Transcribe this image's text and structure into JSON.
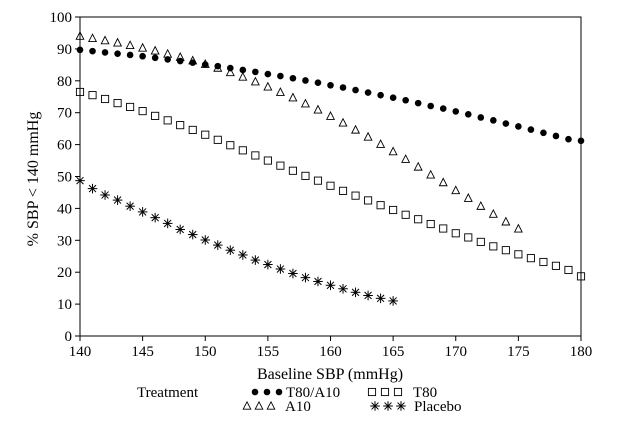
{
  "chart_data": {
    "type": "scatter",
    "title": "",
    "xlabel": "Baseline SBP (mmHg)",
    "ylabel": "% SBP < 140 mmHg",
    "xlim": [
      140,
      180
    ],
    "ylim": [
      0,
      100
    ],
    "x_ticks": [
      140,
      145,
      150,
      155,
      160,
      165,
      170,
      175,
      180
    ],
    "y_ticks": [
      0,
      10,
      20,
      30,
      40,
      50,
      60,
      70,
      80,
      90,
      100
    ],
    "grid": false,
    "legend": {
      "title": "Treatment",
      "placement": "bottom",
      "entries": [
        "T80/A10",
        "T80",
        "A10",
        "Placebo"
      ]
    },
    "series": [
      {
        "name": "T80/A10",
        "marker": "dot",
        "x": [
          140,
          141,
          142,
          143,
          144,
          145,
          146,
          147,
          148,
          149,
          150,
          151,
          152,
          153,
          154,
          155,
          156,
          157,
          158,
          159,
          160,
          161,
          162,
          163,
          164,
          165,
          166,
          167,
          168,
          169,
          170,
          171,
          172,
          173,
          174,
          175,
          176,
          177,
          178,
          179,
          180
        ],
        "y": [
          89.7,
          89.3,
          88.9,
          88.5,
          88.1,
          87.7,
          87.2,
          86.7,
          86.2,
          85.7,
          85.1,
          84.6,
          84.0,
          83.4,
          82.8,
          82.1,
          81.5,
          80.8,
          80.1,
          79.4,
          78.6,
          77.9,
          77.1,
          76.3,
          75.5,
          74.7,
          73.9,
          73.0,
          72.1,
          71.3,
          70.4,
          69.5,
          68.5,
          67.6,
          66.6,
          65.7,
          64.7,
          63.7,
          62.7,
          61.7,
          61.2
        ]
      },
      {
        "name": "T80",
        "marker": "square",
        "x": [
          140,
          141,
          142,
          143,
          144,
          145,
          146,
          147,
          148,
          149,
          150,
          151,
          152,
          153,
          154,
          155,
          156,
          157,
          158,
          159,
          160,
          161,
          162,
          163,
          164,
          165,
          166,
          167,
          168,
          169,
          170,
          171,
          172,
          173,
          174,
          175,
          176,
          177,
          178,
          179,
          180
        ],
        "y": [
          76.5,
          75.5,
          74.3,
          73.0,
          71.8,
          70.5,
          69.0,
          67.6,
          66.1,
          64.6,
          63.1,
          61.5,
          59.8,
          58.2,
          56.6,
          55.0,
          53.4,
          51.8,
          50.2,
          48.7,
          47.1,
          45.5,
          44.0,
          42.5,
          41.0,
          39.5,
          38.0,
          36.6,
          35.1,
          33.7,
          32.2,
          30.9,
          29.5,
          28.1,
          26.9,
          25.6,
          24.4,
          23.2,
          22.0,
          20.7,
          18.7
        ]
      },
      {
        "name": "A10",
        "marker": "triangle",
        "x": [
          140,
          141,
          142,
          143,
          144,
          145,
          146,
          147,
          148,
          149,
          150,
          151,
          152,
          153,
          154,
          155,
          156,
          157,
          158,
          159,
          160,
          161,
          162,
          163,
          164,
          165,
          166,
          167,
          168,
          169,
          170,
          171,
          172,
          173,
          174,
          175
        ],
        "y": [
          94.0,
          93.3,
          92.6,
          91.9,
          91.1,
          90.3,
          89.4,
          88.4,
          87.4,
          86.3,
          85.2,
          84.0,
          82.6,
          81.2,
          79.7,
          78.1,
          76.4,
          74.7,
          72.8,
          70.9,
          68.9,
          66.8,
          64.6,
          62.4,
          60.1,
          57.8,
          55.4,
          53.0,
          50.5,
          48.1,
          45.6,
          43.2,
          40.7,
          38.2,
          35.8,
          33.6
        ]
      },
      {
        "name": "Placebo",
        "marker": "asterisk",
        "x": [
          140,
          141,
          142,
          143,
          144,
          145,
          146,
          147,
          148,
          149,
          150,
          151,
          152,
          153,
          154,
          155,
          156,
          157,
          158,
          159,
          160,
          161,
          162,
          163,
          164,
          165
        ],
        "y": [
          48.7,
          46.2,
          44.2,
          42.6,
          40.7,
          38.9,
          37.1,
          35.3,
          33.4,
          31.8,
          30.1,
          28.5,
          26.9,
          25.4,
          23.8,
          22.4,
          21.0,
          19.6,
          18.3,
          17.1,
          15.9,
          14.8,
          13.7,
          12.7,
          11.8,
          11.0
        ]
      }
    ]
  }
}
